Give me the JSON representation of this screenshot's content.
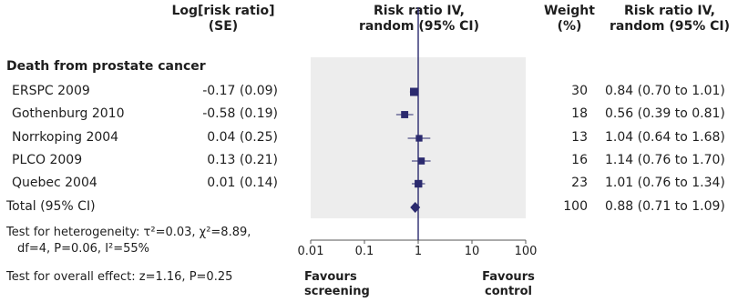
{
  "headers": {
    "log_rr": [
      "Log[risk ratio]",
      "(SE)"
    ],
    "rr_iv": [
      "Risk ratio IV,",
      "random (95% CI)"
    ],
    "weight": [
      "Weight",
      "(%)"
    ],
    "rr_iv_right": [
      "Risk ratio IV,",
      "random (95% CI)"
    ]
  },
  "section_title": "Death from prostate cancer",
  "studies": [
    {
      "name": "ERSPC 2009",
      "log_rr_se": "-0.17 (0.09)",
      "weight": "30",
      "ci_text": "0.84 (0.70 to 1.01)"
    },
    {
      "name": "Gothenburg 2010",
      "log_rr_se": "-0.58 (0.19)",
      "weight": "18",
      "ci_text": "0.56 (0.39 to 0.81)"
    },
    {
      "name": "Norrkoping 2004",
      "log_rr_se": "0.04 (0.25)",
      "weight": "13",
      "ci_text": "1.04 (0.64 to 1.68)"
    },
    {
      "name": "PLCO 2009",
      "log_rr_se": "0.13 (0.21)",
      "weight": "16",
      "ci_text": "1.14 (0.76 to 1.70)"
    },
    {
      "name": "Quebec 2004",
      "log_rr_se": "0.01 (0.14)",
      "weight": "23",
      "ci_text": "1.01 (0.76 to 1.34)"
    }
  ],
  "total": {
    "name": "Total (95% CI)",
    "weight": "100",
    "ci_text": "0.88 (0.71 to 1.09)"
  },
  "heterogeneity": [
    "Test for heterogeneity: τ²=0.03, χ²=8.89,",
    "df=4, P=0.06, I²=55%"
  ],
  "overall_effect": "Test for overall effect: z=1.16, P=0.25",
  "favours_left": [
    "Favours",
    "screening"
  ],
  "favours_right": [
    "Favours",
    "control"
  ],
  "colors": {
    "marker": "#2b2a6e",
    "shade": "#ededed",
    "text": "#1e1e1e"
  },
  "chart_data": {
    "type": "forest",
    "x_scale": "log",
    "xlim": [
      0.01,
      100
    ],
    "x_ticks": [
      "0.01",
      "0.1",
      "1",
      "10",
      "100"
    ],
    "x_tick_values": [
      0.01,
      0.1,
      1,
      10,
      100
    ],
    "reference_line": 1,
    "studies": [
      {
        "label": "ERSPC 2009",
        "rr": 0.84,
        "lo": 0.7,
        "hi": 1.01,
        "weight": 30
      },
      {
        "label": "Gothenburg 2010",
        "rr": 0.56,
        "lo": 0.39,
        "hi": 0.81,
        "weight": 18
      },
      {
        "label": "Norrkoping 2004",
        "rr": 1.04,
        "lo": 0.64,
        "hi": 1.68,
        "weight": 13
      },
      {
        "label": "PLCO 2009",
        "rr": 1.14,
        "lo": 0.76,
        "hi": 1.7,
        "weight": 16
      },
      {
        "label": "Quebec 2004",
        "rr": 1.01,
        "lo": 0.76,
        "hi": 1.34,
        "weight": 23
      }
    ],
    "pooled": {
      "label": "Total (95% CI)",
      "rr": 0.88,
      "lo": 0.71,
      "hi": 1.09
    }
  }
}
